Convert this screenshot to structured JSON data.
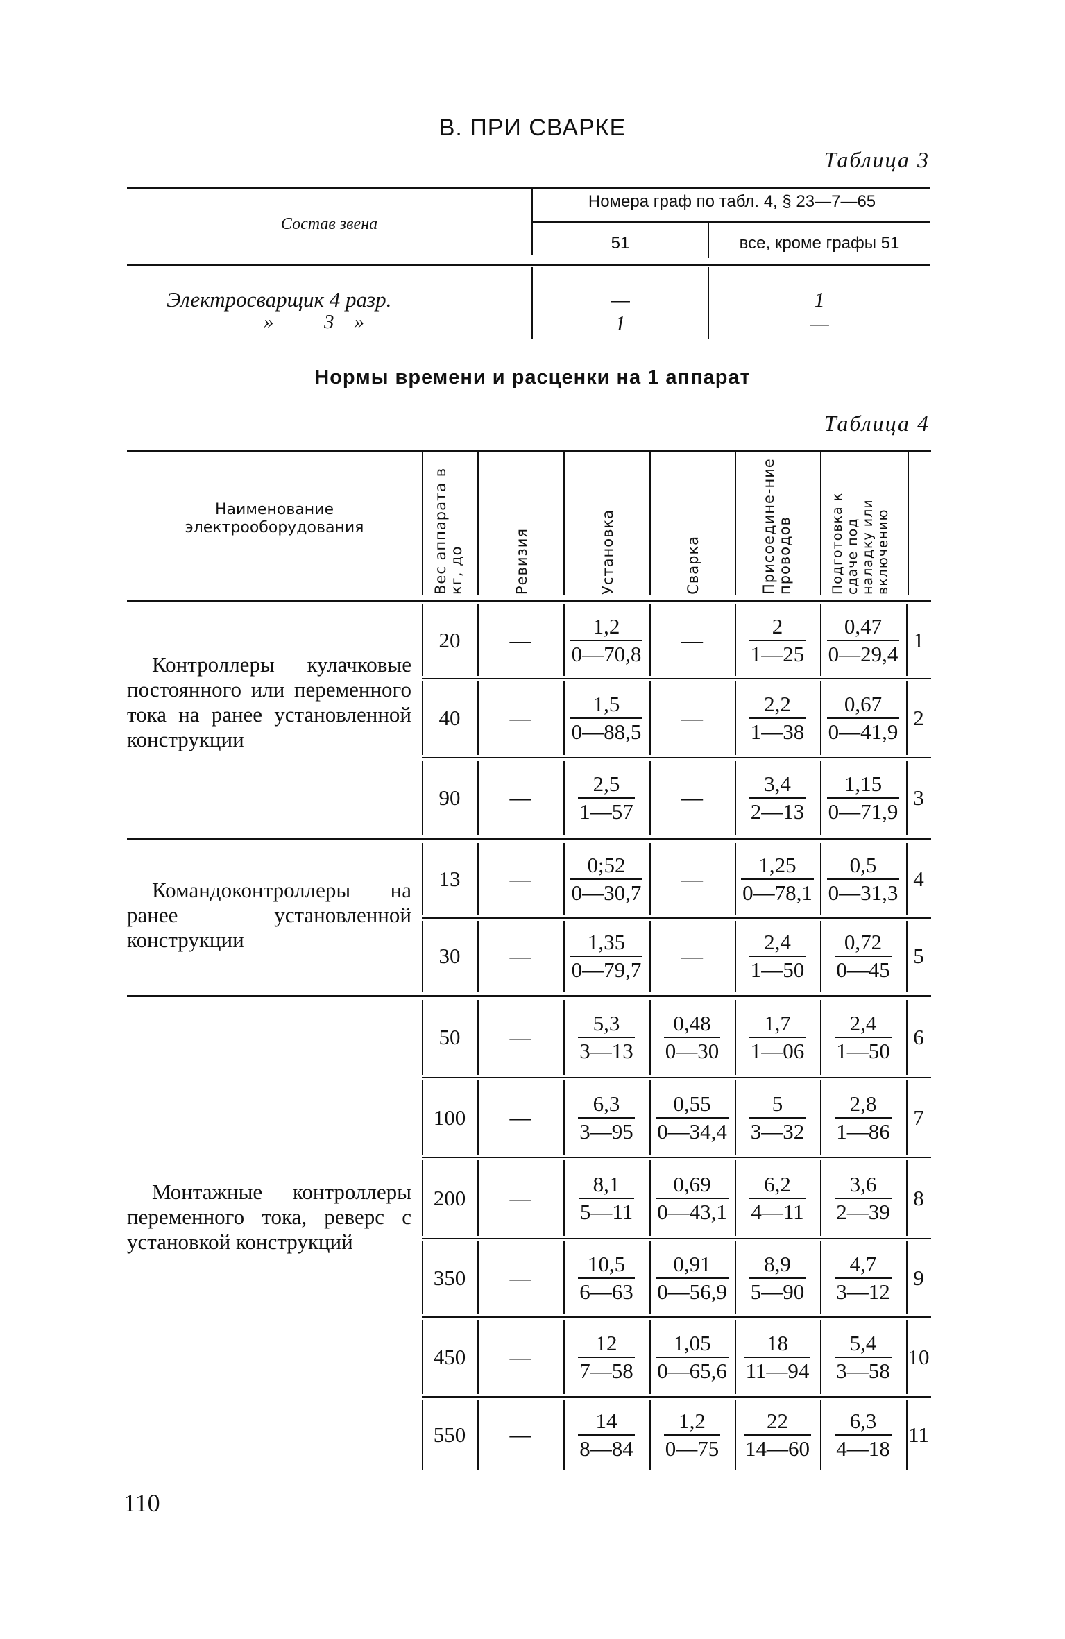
{
  "section_title": "В. ПРИ СВАРКЕ",
  "table3": {
    "caption": "Таблица 3",
    "col_crew": "Состав звена",
    "col_group": "Номера граф по табл. 4, § 23—7—65",
    "sub_cols": [
      "51",
      "все, кроме графы 51"
    ],
    "rows": [
      {
        "crew": "Электросварщик 4 разр.",
        "c51": "—",
        "other": "1"
      },
      {
        "crew": "»          3    »",
        "c51": "1",
        "other": "—"
      }
    ]
  },
  "subtitle": "Нормы времени и расценки на 1 аппарат",
  "table4": {
    "caption": "Таблица 4",
    "headers": {
      "name": "Наименование электрооборудования",
      "weight": "Вес аппарата в кг, до",
      "revision": "Ревизия",
      "installation": "Установка",
      "welding": "Сварка",
      "connection": "Присоедине-ние проводов",
      "preparation": "Подготовка к сдаче под наладку или включению"
    },
    "groups": [
      {
        "name": "Контроллеры кулачковые постоянного или переменного тока на ранее установленной конструкции",
        "rows": [
          {
            "weight": "20",
            "revision": "—",
            "installation": [
              "1,2",
              "0—70,8"
            ],
            "welding": "—",
            "connection": [
              "2",
              "1—25"
            ],
            "preparation": [
              "0,47",
              "0—29,4"
            ],
            "n": "1"
          },
          {
            "weight": "40",
            "revision": "—",
            "installation": [
              "1,5",
              "0—88,5"
            ],
            "welding": "—",
            "connection": [
              "2,2",
              "1—38"
            ],
            "preparation": [
              "0,67",
              "0—41,9"
            ],
            "n": "2"
          },
          {
            "weight": "90",
            "revision": "—",
            "installation": [
              "2,5",
              "1—57"
            ],
            "welding": "—",
            "connection": [
              "3,4",
              "2—13"
            ],
            "preparation": [
              "1,15",
              "0—71,9"
            ],
            "n": "3"
          }
        ]
      },
      {
        "name": "Командоконтроллеры на ранее установленной конструкции",
        "rows": [
          {
            "weight": "13",
            "revision": "—",
            "installation": [
              "0;52",
              "0—30,7"
            ],
            "welding": "—",
            "connection": [
              "1,25",
              "0—78,1"
            ],
            "preparation": [
              "0,5",
              "0—31,3"
            ],
            "n": "4"
          },
          {
            "weight": "30",
            "revision": "—",
            "installation": [
              "1,35",
              "0—79,7"
            ],
            "welding": "—",
            "connection": [
              "2,4",
              "1—50"
            ],
            "preparation": [
              "0,72",
              "0—45"
            ],
            "n": "5"
          }
        ]
      },
      {
        "name": "Монтажные контроллеры переменного тока, реверс с установкой конструкций",
        "rows": [
          {
            "weight": "50",
            "revision": "—",
            "installation": [
              "5,3",
              "3—13"
            ],
            "welding": [
              "0,48",
              "0—30"
            ],
            "connection": [
              "1,7",
              "1—06"
            ],
            "preparation": [
              "2,4",
              "1—50"
            ],
            "n": "6"
          },
          {
            "weight": "100",
            "revision": "—",
            "installation": [
              "6,3",
              "3—95"
            ],
            "welding": [
              "0,55",
              "0—34,4"
            ],
            "connection": [
              "5",
              "3—32"
            ],
            "preparation": [
              "2,8",
              "1—86"
            ],
            "n": "7"
          },
          {
            "weight": "200",
            "revision": "—",
            "installation": [
              "8,1",
              "5—11"
            ],
            "welding": [
              "0,69",
              "0—43,1"
            ],
            "connection": [
              "6,2",
              "4—11"
            ],
            "preparation": [
              "3,6",
              "2—39"
            ],
            "n": "8"
          },
          {
            "weight": "350",
            "revision": "—",
            "installation": [
              "10,5",
              "6—63"
            ],
            "welding": [
              "0,91",
              "0—56,9"
            ],
            "connection": [
              "8,9",
              "5—90"
            ],
            "preparation": [
              "4,7",
              "3—12"
            ],
            "n": "9"
          },
          {
            "weight": "450",
            "revision": "—",
            "installation": [
              "12",
              "7—58"
            ],
            "welding": [
              "1,05",
              "0—65,6"
            ],
            "connection": [
              "18",
              "11—94"
            ],
            "preparation": [
              "5,4",
              "3—58"
            ],
            "n": "10"
          },
          {
            "weight": "550",
            "revision": "—",
            "installation": [
              "14",
              "8—84"
            ],
            "welding": [
              "1,2",
              "0—75"
            ],
            "connection": [
              "22",
              "14—60"
            ],
            "preparation": [
              "6,3",
              "4—18"
            ],
            "n": "11"
          }
        ]
      }
    ]
  },
  "page_number": "110"
}
